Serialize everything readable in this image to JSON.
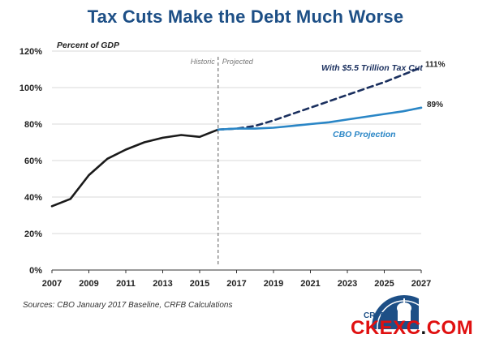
{
  "title": "Tax Cuts Make the Debt Much Worse",
  "sources": "Sources: CBO January 2017 Baseline, CRFB Calculations",
  "logo_text": "CRFB",
  "watermark": {
    "left": "CKEXC",
    "dot": ".",
    "right": "COM"
  },
  "colors": {
    "title": "#1d4f86",
    "historic": "#1a1a1a",
    "cbo": "#2a86c6",
    "taxcut": "#1a2f5e",
    "grid": "#d9d9d9",
    "divider": "#7f7f7f",
    "watermark": "#e01010"
  },
  "chart_data": {
    "type": "line",
    "ylabel": "Percent of GDP",
    "ylim": [
      0,
      120
    ],
    "yticks": [
      "0%",
      "20%",
      "40%",
      "60%",
      "80%",
      "100%",
      "120%"
    ],
    "ytick_values": [
      0,
      20,
      40,
      60,
      80,
      100,
      120
    ],
    "xlim": [
      2007,
      2027
    ],
    "xticks": [
      "2007",
      "2009",
      "2011",
      "2013",
      "2015",
      "2017",
      "2019",
      "2021",
      "2023",
      "2025",
      "2027"
    ],
    "xtick_values": [
      2007,
      2009,
      2011,
      2013,
      2015,
      2017,
      2019,
      2021,
      2023,
      2025,
      2027
    ],
    "grid": "horizontal",
    "divider": {
      "x": 2016,
      "left_label": "Historic",
      "right_label": "Projected"
    },
    "series": [
      {
        "name": "Historic",
        "style": "solid",
        "x": [
          2007,
          2008,
          2009,
          2010,
          2011,
          2012,
          2013,
          2014,
          2015,
          2016
        ],
        "values": [
          35,
          39,
          52,
          61,
          66,
          70,
          72.5,
          74,
          73,
          77
        ]
      },
      {
        "name": "CBO Projection",
        "style": "solid",
        "x": [
          2016,
          2017,
          2018,
          2019,
          2020,
          2021,
          2022,
          2023,
          2024,
          2025,
          2026,
          2027
        ],
        "values": [
          77,
          77.5,
          77.5,
          78,
          79,
          80,
          81,
          82.5,
          84,
          85.5,
          87,
          89
        ],
        "end_label": "89%"
      },
      {
        "name": "With $5.5 Trillion Tax Cut",
        "style": "dashed",
        "x": [
          2016,
          2017,
          2018,
          2019,
          2020,
          2021,
          2022,
          2023,
          2024,
          2025,
          2026,
          2027
        ],
        "values": [
          77,
          77.5,
          79,
          82,
          85.5,
          89,
          92.5,
          96,
          99.5,
          103,
          107,
          111
        ],
        "end_label": "111%"
      }
    ]
  }
}
